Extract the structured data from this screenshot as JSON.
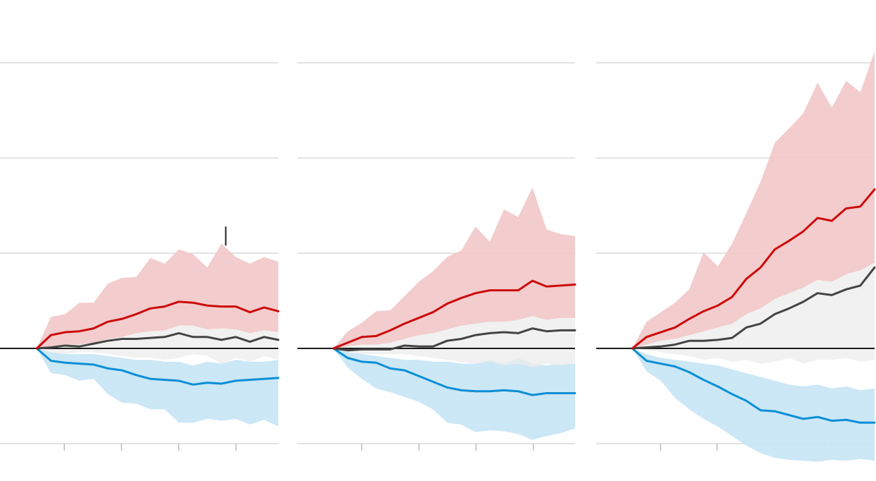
{
  "colors": {
    "republican": "#cc0a0a",
    "republican_band": "#f2c9ca",
    "democrat": "#0b8fd6",
    "democrat_band": "#c9e6f5",
    "neutral": "#444444",
    "neutral_band": "#ececec",
    "grid": "#c4c4c4",
    "zero_line": "#1a1a1a"
  },
  "chart_data": [
    {
      "type": "line",
      "panel": "left",
      "title": "",
      "xlabel": "",
      "ylabel": "",
      "x": [
        1,
        2,
        3,
        4,
        5,
        6,
        7,
        8,
        9,
        10,
        11,
        12,
        13,
        14,
        15,
        16,
        17,
        18
      ],
      "ylim": [
        -1,
        3
      ],
      "grid": true,
      "annotation_marker_x": 14.3,
      "series": [
        {
          "role": "red",
          "values": [
            0,
            0.14,
            0.17,
            0.18,
            0.21,
            0.28,
            0.31,
            0.36,
            0.42,
            0.44,
            0.49,
            0.48,
            0.45,
            0.44,
            0.44,
            0.38,
            0.43,
            0.39
          ],
          "band_upper": [
            0,
            0.33,
            0.36,
            0.48,
            0.48,
            0.68,
            0.74,
            0.75,
            0.95,
            0.89,
            1.04,
            0.99,
            0.85,
            1.1,
            0.96,
            0.89,
            0.96,
            0.91
          ],
          "band_lower": [
            0,
            0.02,
            0.04,
            0.04,
            0.06,
            0.1,
            0.12,
            0.16,
            0.18,
            0.19,
            0.24,
            0.24,
            0.2,
            0.21,
            0.2,
            0.16,
            0.19,
            0.17
          ]
        },
        {
          "role": "dark",
          "values": [
            0,
            0.01,
            0.03,
            0.02,
            0.05,
            0.08,
            0.1,
            0.1,
            0.11,
            0.12,
            0.16,
            0.12,
            0.12,
            0.09,
            0.12,
            0.07,
            0.12,
            0.09
          ],
          "band_upper": [
            0,
            0.07,
            0.1,
            0.12,
            0.22,
            0.33,
            0.28,
            0.3,
            0.34,
            0.5,
            0.58,
            0.55,
            0.5,
            0.68,
            0.48,
            0.52,
            0.56,
            0.6
          ],
          "band_lower": [
            0,
            -0.04,
            -0.06,
            -0.04,
            -0.04,
            -0.06,
            -0.08,
            -0.1,
            -0.1,
            -0.12,
            -0.1,
            -0.06,
            -0.08,
            -0.16,
            -0.1,
            -0.14,
            -0.08,
            -0.12
          ]
        },
        {
          "role": "blue",
          "values": [
            0,
            -0.13,
            -0.15,
            -0.16,
            -0.17,
            -0.21,
            -0.23,
            -0.28,
            -0.32,
            -0.33,
            -0.34,
            -0.38,
            -0.36,
            -0.37,
            -0.34,
            -0.33,
            -0.32,
            -0.31
          ],
          "band_upper": [
            0,
            -0.04,
            -0.06,
            -0.06,
            -0.06,
            -0.08,
            -0.1,
            -0.12,
            -0.12,
            -0.14,
            -0.14,
            -0.18,
            -0.14,
            -0.16,
            -0.12,
            -0.14,
            -0.14,
            -0.12
          ],
          "band_lower": [
            0,
            -0.26,
            -0.28,
            -0.34,
            -0.32,
            -0.48,
            -0.57,
            -0.58,
            -0.64,
            -0.64,
            -0.78,
            -0.78,
            -0.74,
            -0.76,
            -0.74,
            -0.8,
            -0.75,
            -0.82
          ]
        }
      ]
    },
    {
      "type": "line",
      "panel": "middle",
      "title": "",
      "xlabel": "",
      "ylabel": "",
      "x": [
        1,
        2,
        3,
        4,
        5,
        6,
        7,
        8,
        9,
        10,
        11,
        12,
        13,
        14,
        15,
        16,
        17,
        18
      ],
      "ylim": [
        -1,
        3
      ],
      "grid": true,
      "series": [
        {
          "role": "red",
          "values": [
            0,
            0.06,
            0.12,
            0.13,
            0.19,
            0.26,
            0.32,
            0.38,
            0.47,
            0.53,
            0.58,
            0.61,
            0.61,
            0.61,
            0.71,
            0.65,
            0.66,
            0.67
          ],
          "band_upper": [
            0,
            0.18,
            0.27,
            0.39,
            0.4,
            0.55,
            0.7,
            0.81,
            0.96,
            1.03,
            1.28,
            1.12,
            1.46,
            1.38,
            1.69,
            1.25,
            1.2,
            1.18
          ],
          "band_lower": [
            0,
            0.02,
            0.04,
            0.04,
            0.06,
            0.1,
            0.14,
            0.16,
            0.2,
            0.24,
            0.26,
            0.28,
            0.28,
            0.3,
            0.34,
            0.3,
            0.32,
            0.32
          ]
        },
        {
          "role": "dark",
          "values": [
            0,
            -0.02,
            -0.01,
            -0.01,
            -0.01,
            0.03,
            0.02,
            0.02,
            0.08,
            0.1,
            0.14,
            0.16,
            0.17,
            0.16,
            0.21,
            0.18,
            0.19,
            0.19
          ],
          "band_upper": [
            0,
            0.08,
            0.12,
            0.14,
            0.12,
            0.2,
            0.18,
            0.2,
            0.26,
            0.3,
            0.44,
            0.5,
            0.62,
            0.52,
            0.8,
            0.74,
            0.72,
            0.76
          ],
          "band_lower": [
            0,
            -0.04,
            -0.06,
            -0.06,
            -0.06,
            -0.06,
            -0.08,
            -0.1,
            -0.12,
            -0.14,
            -0.16,
            -0.14,
            -0.18,
            -0.16,
            -0.2,
            -0.16,
            -0.18,
            -0.16
          ]
        },
        {
          "role": "blue",
          "values": [
            0,
            -0.1,
            -0.14,
            -0.15,
            -0.21,
            -0.23,
            -0.29,
            -0.35,
            -0.41,
            -0.44,
            -0.45,
            -0.45,
            -0.44,
            -0.45,
            -0.49,
            -0.47,
            -0.47,
            -0.47
          ],
          "band_upper": [
            0,
            -0.04,
            -0.06,
            -0.08,
            -0.1,
            -0.12,
            -0.12,
            -0.14,
            -0.14,
            -0.16,
            -0.16,
            -0.12,
            -0.16,
            -0.1,
            -0.16,
            -0.18,
            -0.16,
            -0.16
          ],
          "band_lower": [
            0,
            -0.2,
            -0.32,
            -0.42,
            -0.46,
            -0.51,
            -0.56,
            -0.64,
            -0.78,
            -0.8,
            -0.88,
            -0.86,
            -0.87,
            -0.9,
            -0.96,
            -0.92,
            -0.89,
            -0.84
          ]
        }
      ]
    },
    {
      "type": "line",
      "panel": "right",
      "title": "",
      "xlabel": "",
      "ylabel": "",
      "x": [
        1,
        2,
        3,
        4,
        5,
        6,
        7,
        8,
        9,
        10,
        11,
        12,
        13,
        14,
        15,
        16,
        17,
        18
      ],
      "ylim": [
        -1,
        3
      ],
      "grid": true,
      "series": [
        {
          "role": "red",
          "values": [
            0,
            0.12,
            0.17,
            0.22,
            0.31,
            0.39,
            0.45,
            0.54,
            0.73,
            0.85,
            1.04,
            1.13,
            1.23,
            1.37,
            1.34,
            1.47,
            1.49,
            1.67
          ],
          "band_upper": [
            0,
            0.28,
            0.38,
            0.48,
            0.62,
            1.01,
            0.86,
            1.1,
            1.42,
            1.75,
            2.16,
            2.31,
            2.47,
            2.79,
            2.53,
            2.81,
            2.69,
            3.12
          ],
          "band_lower": [
            0,
            0.04,
            0.08,
            0.1,
            0.14,
            0.18,
            0.22,
            0.26,
            0.36,
            0.42,
            0.52,
            0.58,
            0.64,
            0.72,
            0.7,
            0.78,
            0.82,
            0.9
          ]
        },
        {
          "role": "dark",
          "values": [
            0,
            0.01,
            0.02,
            0.04,
            0.08,
            0.08,
            0.09,
            0.11,
            0.22,
            0.26,
            0.36,
            0.42,
            0.49,
            0.58,
            0.56,
            0.62,
            0.66,
            0.85
          ],
          "band_upper": [
            0,
            0.06,
            0.1,
            0.14,
            0.2,
            0.24,
            0.3,
            0.42,
            0.66,
            0.82,
            1.08,
            1.22,
            1.32,
            1.5,
            1.4,
            1.58,
            1.64,
            2.0
          ],
          "band_lower": [
            0,
            -0.02,
            -0.04,
            -0.06,
            -0.08,
            -0.12,
            -0.1,
            -0.14,
            -0.12,
            -0.16,
            -0.14,
            -0.1,
            -0.16,
            -0.12,
            -0.12,
            -0.1,
            -0.14,
            -0.12
          ]
        },
        {
          "role": "blue",
          "values": [
            0,
            -0.13,
            -0.16,
            -0.19,
            -0.25,
            -0.33,
            -0.4,
            -0.48,
            -0.55,
            -0.65,
            -0.66,
            -0.7,
            -0.74,
            -0.72,
            -0.76,
            -0.75,
            -0.78,
            -0.78
          ],
          "band_upper": [
            0,
            -0.06,
            -0.1,
            -0.12,
            -0.14,
            -0.16,
            -0.18,
            -0.22,
            -0.26,
            -0.3,
            -0.34,
            -0.38,
            -0.4,
            -0.38,
            -0.42,
            -0.4,
            -0.44,
            -0.42
          ],
          "band_lower": [
            0,
            -0.24,
            -0.34,
            -0.52,
            -0.64,
            -0.74,
            -0.82,
            -0.92,
            -1.02,
            -1.1,
            -1.15,
            -1.17,
            -1.18,
            -1.19,
            -1.17,
            -1.18,
            -1.16,
            -1.18
          ]
        }
      ]
    }
  ]
}
